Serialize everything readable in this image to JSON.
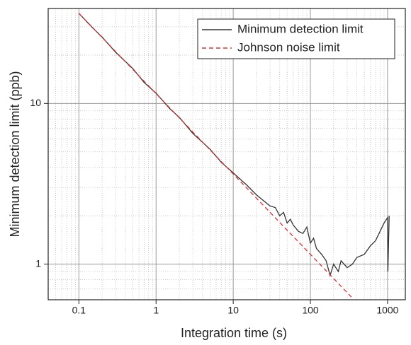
{
  "chart_data": {
    "type": "line",
    "xlabel": "Integration time (s)",
    "ylabel": "Minimum detection limit (ppb)",
    "xscale": "log",
    "yscale": "log",
    "xlim": [
      0.04,
      1700
    ],
    "ylim": [
      0.6,
      39
    ],
    "xticks": [
      0.1,
      1,
      10,
      100,
      1000
    ],
    "yticks": [
      1,
      10
    ],
    "grid": true,
    "legend": "upper right",
    "series": [
      {
        "name": "Minimum detection limit",
        "color": "#333333",
        "dash": "solid",
        "x": [
          0.1,
          0.15,
          0.2,
          0.3,
          0.5,
          0.7,
          1,
          1.5,
          2,
          3,
          5,
          7,
          10,
          15,
          20,
          30,
          35,
          40,
          45,
          50,
          55,
          60,
          70,
          80,
          90,
          100,
          110,
          120,
          140,
          160,
          180,
          200,
          230,
          250,
          300,
          350,
          400,
          500,
          600,
          700,
          800,
          900,
          1000,
          1010,
          1050
        ],
        "values": [
          36.4,
          29.6,
          25.9,
          20.8,
          16.5,
          13.5,
          11.6,
          9.3,
          8.2,
          6.5,
          5.2,
          4.3,
          3.7,
          3.1,
          2.7,
          2.3,
          2.25,
          2.0,
          2.1,
          1.8,
          1.9,
          1.75,
          1.6,
          1.55,
          1.7,
          1.35,
          1.45,
          1.25,
          1.15,
          1.05,
          0.85,
          1.0,
          0.9,
          1.05,
          0.95,
          1.0,
          1.1,
          1.15,
          1.3,
          1.4,
          1.6,
          1.8,
          1.95,
          0.9,
          2.0
        ]
      },
      {
        "name": "Johnson noise limit",
        "color": "#e03030",
        "dash": "dashed",
        "x": [
          0.1,
          350
        ],
        "values": [
          36.4,
          0.615
        ]
      }
    ]
  }
}
